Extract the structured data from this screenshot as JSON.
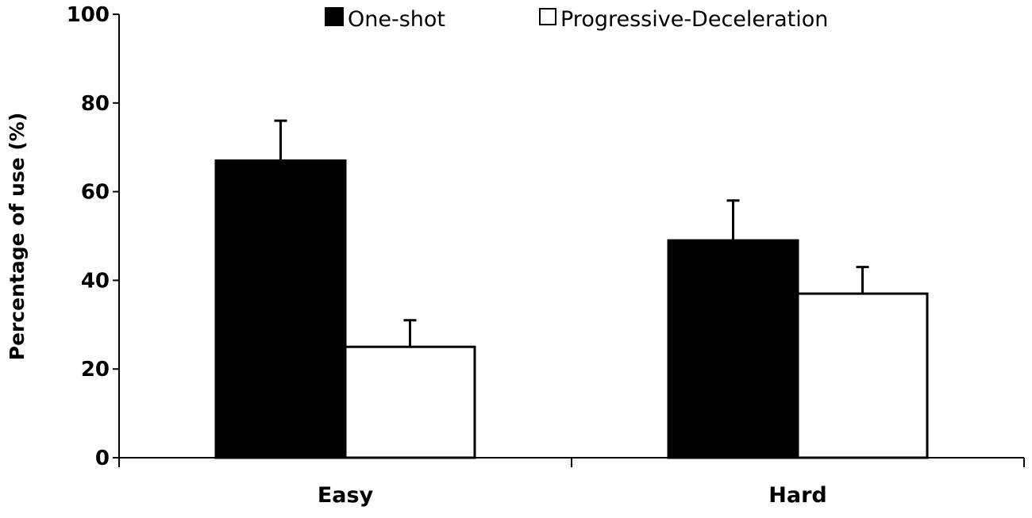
{
  "chart_data": {
    "type": "bar",
    "categories": [
      "Easy",
      "Hard"
    ],
    "series": [
      {
        "name": "One-shot",
        "values": [
          67,
          49
        ],
        "error": [
          9,
          9
        ],
        "color": "#000000"
      },
      {
        "name": "Progressive-Deceleration",
        "values": [
          25,
          37
        ],
        "error": [
          6,
          6
        ],
        "color": "#ffffff"
      }
    ],
    "ylabel": "Percentage of use (%)",
    "xlabel": "",
    "ylim": [
      0,
      100
    ],
    "yticks": [
      "0",
      "20",
      "40",
      "60",
      "80",
      "100"
    ],
    "legend_position": "top-center",
    "grid": false
  }
}
